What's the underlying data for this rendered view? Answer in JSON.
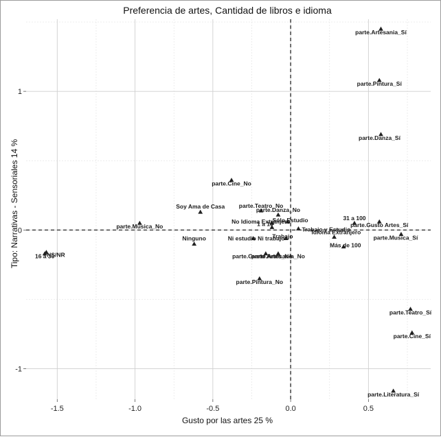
{
  "chart_data": {
    "type": "scatter",
    "title": "Preferencia de artes, Cantidad de libros e idioma",
    "xlabel": "Gusto por las artes 25 %",
    "ylabel": "Tipo: Narrativas - Sensoriales 14 %",
    "xlim": [
      -1.7,
      0.9
    ],
    "ylim": [
      -1.22,
      1.52
    ],
    "x_ticks": [
      -1.5,
      -1.0,
      -0.5,
      0.0,
      0.5
    ],
    "x_tick_labels": [
      "-1.5",
      "-1.0",
      "-0.5",
      "0.0",
      "0.5"
    ],
    "y_ticks": [
      -1,
      0,
      1
    ],
    "y_tick_labels": [
      "-1",
      "0",
      "1"
    ],
    "grid": true,
    "reference_lines": {
      "x": 0,
      "y": 0
    },
    "points": [
      {
        "label": "parte.Artesania_Sí",
        "x": 0.58,
        "y": 1.45
      },
      {
        "label": "parte.Pintura_Sí",
        "x": 0.57,
        "y": 1.08
      },
      {
        "label": "parte.Danza_Sí",
        "x": 0.58,
        "y": 0.69
      },
      {
        "label": "parte.Cine_No",
        "x": -0.38,
        "y": 0.36
      },
      {
        "label": "Soy Ama de Casa",
        "x": -0.58,
        "y": 0.13
      },
      {
        "label": "parte.Musica_No",
        "x": -0.97,
        "y": 0.05
      },
      {
        "label": "parte.Teatro_No",
        "x": -0.19,
        "y": 0.14
      },
      {
        "label": "parte.Danza_No",
        "x": -0.08,
        "y": 0.11
      },
      {
        "label": "Sólo Estudio",
        "x": -0.02,
        "y": 0.06
      },
      {
        "label": "No Idioma Extranjero",
        "x": -0.12,
        "y": 0.05
      },
      {
        "label": "1 a 10",
        "x": -0.12,
        "y": 0.02
      },
      {
        "label": "Trabajo y Estudio",
        "x": 0.05,
        "y": 0.01
      },
      {
        "label": "31 a 100",
        "x": 0.41,
        "y": 0.05
      },
      {
        "label": "parte.Gusto Artes_Sí",
        "x": 0.57,
        "y": 0.06
      },
      {
        "label": "Ni estudio Ni trabajo",
        "x": -0.24,
        "y": -0.06
      },
      {
        "label": "Trabajo",
        "x": -0.03,
        "y": -0.06
      },
      {
        "label": "Idioma Extranjero",
        "x": 0.28,
        "y": -0.05
      },
      {
        "label": "Más de 100",
        "x": 0.34,
        "y": -0.12
      },
      {
        "label": "parte.Musica_Sí",
        "x": 0.71,
        "y": -0.03
      },
      {
        "label": "Ninguno",
        "x": -0.62,
        "y": -0.1
      },
      {
        "label": "parte.Gusto Artes_No",
        "x": -0.16,
        "y": -0.17
      },
      {
        "label": "parte.Artesania_No",
        "x": -0.08,
        "y": -0.17
      },
      {
        "label": "NS/NR",
        "x": -1.57,
        "y": -0.16
      },
      {
        "label": "16 a 30",
        "x": -1.58,
        "y": -0.17
      },
      {
        "label": "parte.Pintura_No",
        "x": -0.2,
        "y": -0.35
      },
      {
        "label": "parte.Teatro_Sí",
        "x": 0.77,
        "y": -0.57
      },
      {
        "label": "parte.Cine_Sí",
        "x": 0.78,
        "y": -0.74
      },
      {
        "label": "parte.Literatura_Sí",
        "x": 0.66,
        "y": -1.16
      }
    ]
  }
}
